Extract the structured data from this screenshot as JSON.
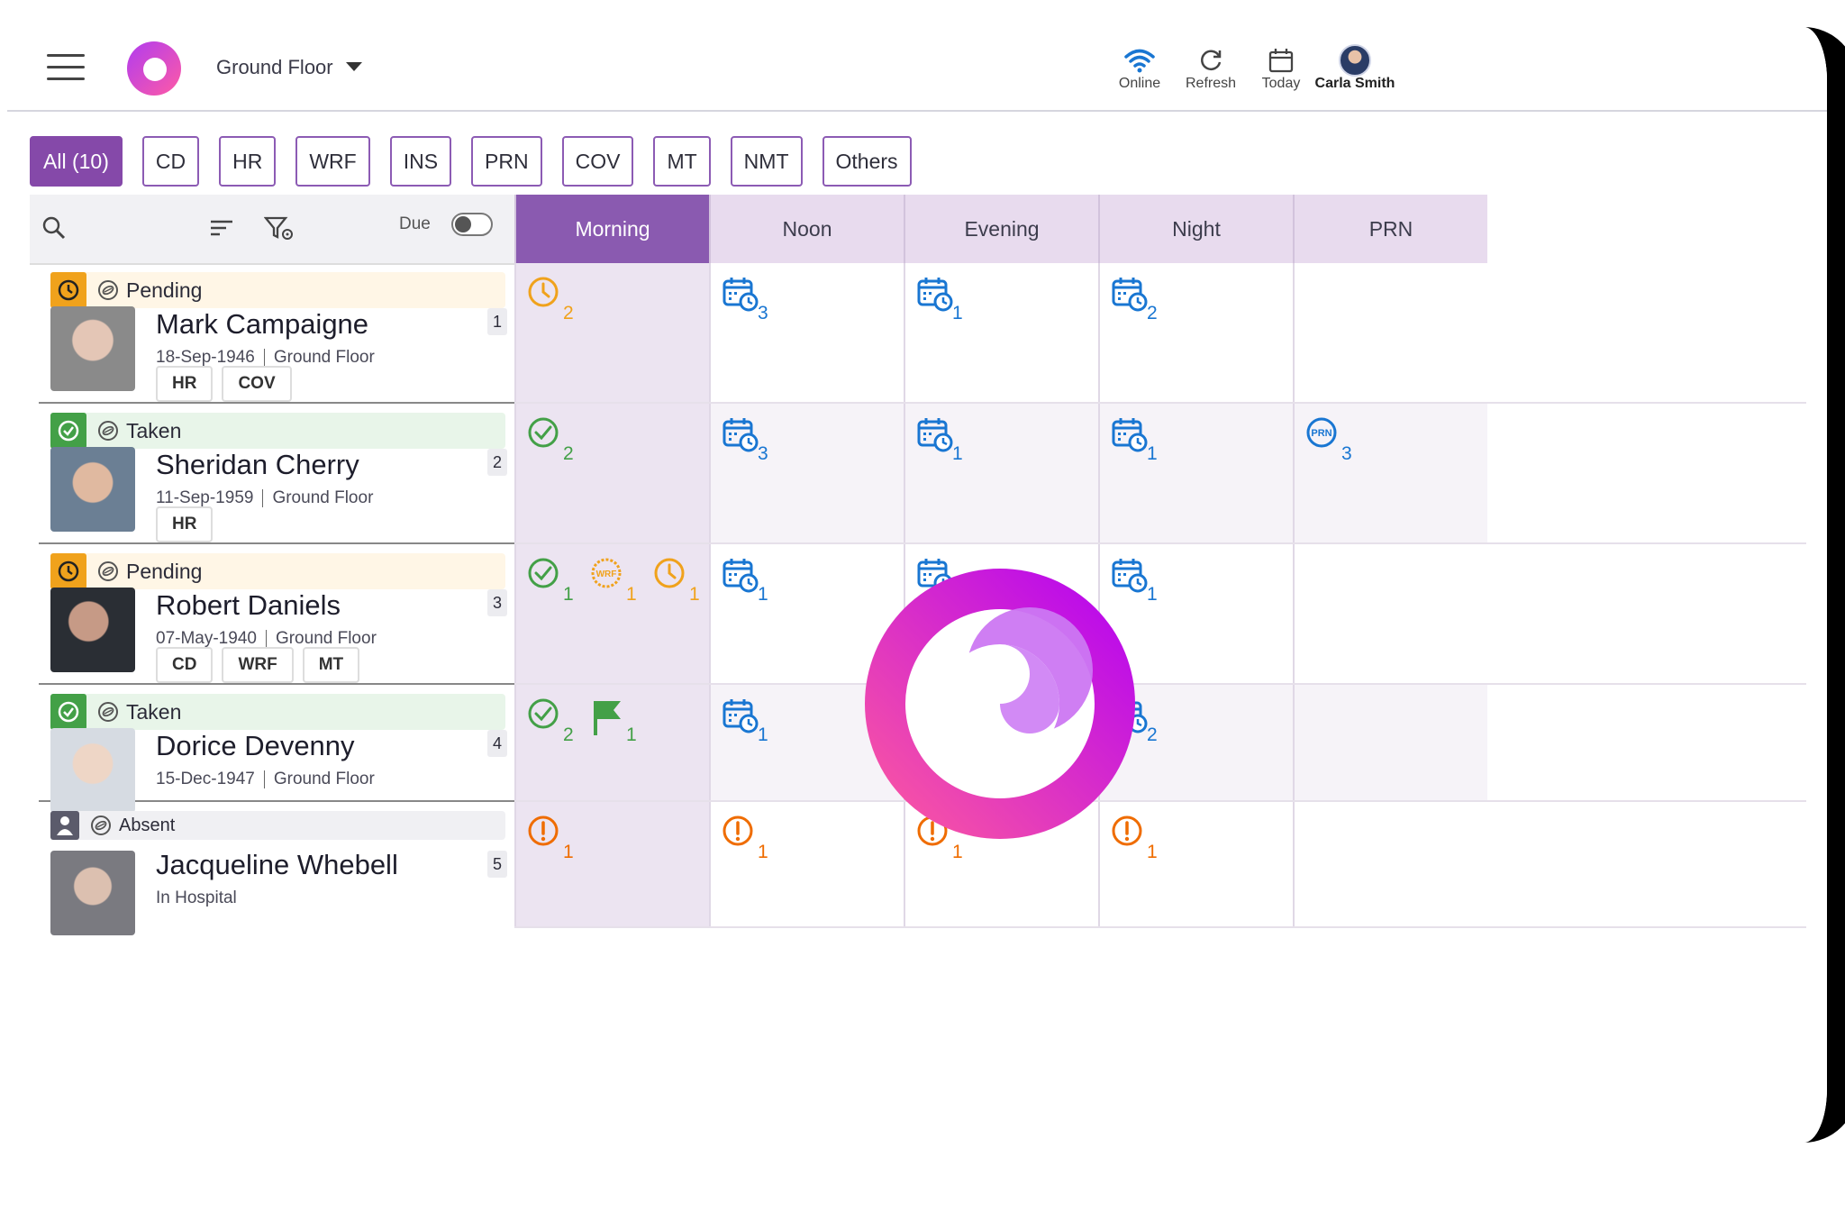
{
  "header": {
    "floor": "Ground Floor",
    "online_label": "Online",
    "refresh_label": "Refresh",
    "today_label": "Today",
    "user_name": "Carla Smith"
  },
  "filters": [
    "All (10)",
    "CD",
    "HR",
    "WRF",
    "INS",
    "PRN",
    "COV",
    "MT",
    "NMT",
    "Others"
  ],
  "toolbar": {
    "due_label": "Due"
  },
  "columns": [
    "Morning",
    "Noon",
    "Evening",
    "Night",
    "PRN"
  ],
  "residents": [
    {
      "status": "Pending",
      "name": "Mark Campaigne",
      "dob": "18-Sep-1946",
      "location": "Ground Floor",
      "number": "1",
      "tags": [
        "HR",
        "COV"
      ]
    },
    {
      "status": "Taken",
      "name": "Sheridan Cherry",
      "dob": "11-Sep-1959",
      "location": "Ground Floor",
      "number": "2",
      "tags": [
        "HR"
      ]
    },
    {
      "status": "Pending",
      "name": "Robert Daniels",
      "dob": "07-May-1940",
      "location": "Ground Floor",
      "number": "3",
      "tags": [
        "CD",
        "WRF",
        "MT"
      ]
    },
    {
      "status": "Taken",
      "name": "Dorice Devenny",
      "dob": "15-Dec-1947",
      "location": "Ground Floor",
      "number": "4",
      "tags": []
    },
    {
      "status": "Absent",
      "name": "Jacqueline Whebell",
      "dob": "In Hospital",
      "location": "",
      "number": "5",
      "tags": []
    }
  ],
  "cells": [
    [
      [
        {
          "icon": "clock-icon",
          "count": "2"
        }
      ],
      [
        {
          "icon": "calendar-clock-icon",
          "count": "3"
        }
      ],
      [
        {
          "icon": "calendar-clock-icon",
          "count": "1"
        }
      ],
      [
        {
          "icon": "calendar-clock-icon",
          "count": "2"
        }
      ],
      []
    ],
    [
      [
        {
          "icon": "check-circle-icon",
          "count": "2"
        }
      ],
      [
        {
          "icon": "calendar-clock-icon",
          "count": "3"
        }
      ],
      [
        {
          "icon": "calendar-clock-icon",
          "count": "1"
        }
      ],
      [
        {
          "icon": "calendar-clock-icon",
          "count": "1"
        }
      ],
      [
        {
          "icon": "prn-icon",
          "count": "3",
          "text": "PRN"
        }
      ]
    ],
    [
      [
        {
          "icon": "check-circle-icon",
          "count": "1"
        },
        {
          "icon": "wrf-icon",
          "count": "1",
          "text": "WRF"
        },
        {
          "icon": "clock-icon",
          "count": "1"
        }
      ],
      [
        {
          "icon": "calendar-clock-icon",
          "count": "1"
        }
      ],
      [
        {
          "icon": "calendar-clock-icon",
          "count": ""
        }
      ],
      [
        {
          "icon": "calendar-clock-icon",
          "count": "1"
        }
      ],
      []
    ],
    [
      [
        {
          "icon": "check-circle-icon",
          "count": "2"
        },
        {
          "icon": "flag-icon",
          "count": "1"
        }
      ],
      [
        {
          "icon": "calendar-clock-icon",
          "count": "1"
        }
      ],
      [],
      [
        {
          "icon": "calendar-clock-icon",
          "count": "2"
        }
      ],
      []
    ],
    [
      [
        {
          "icon": "alert-circle-icon",
          "count": "1"
        }
      ],
      [
        {
          "icon": "alert-circle-icon",
          "count": "1"
        }
      ],
      [
        {
          "icon": "alert-circle-icon",
          "count": "1"
        }
      ],
      [
        {
          "icon": "alert-circle-icon",
          "count": "1"
        }
      ],
      []
    ]
  ],
  "colors": {
    "accent": "#8549a9",
    "pending": "#f0a21c",
    "taken": "#43a047",
    "alert": "#ef6c00",
    "calendar": "#1976d2"
  }
}
